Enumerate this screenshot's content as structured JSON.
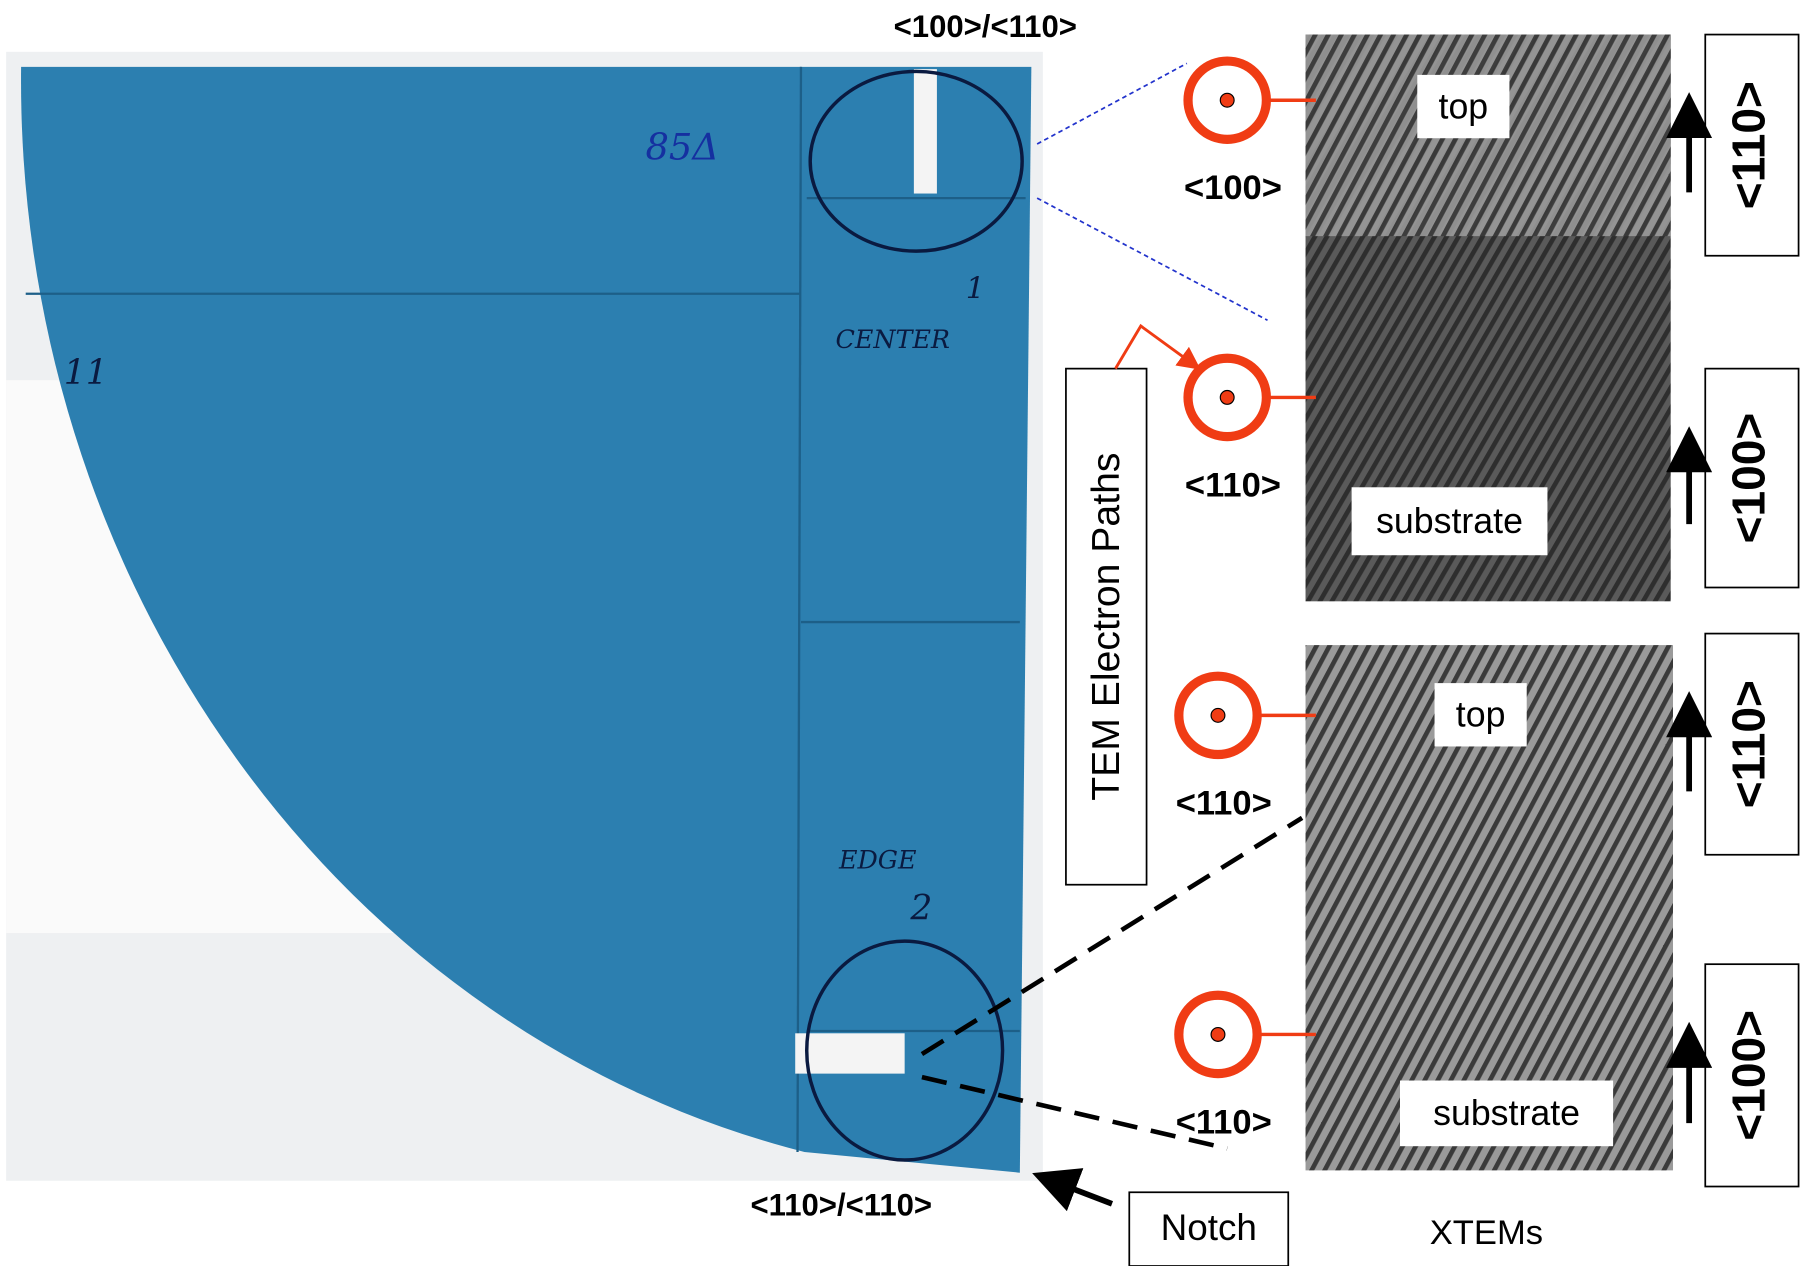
{
  "wafer": {
    "top_label": "<100>/<110>",
    "bottom_label": "<110>/<110>",
    "handwriting": {
      "id": "85Δ",
      "mark": "11",
      "center_num": "1",
      "center": "CENTER",
      "edge": "EDGE",
      "edge_num": "2"
    },
    "notch": "Notch"
  },
  "beam_label": "TEM Electron Paths",
  "panels": [
    {
      "top_beam": "<100>",
      "bottom_beam": "<110>",
      "top": "top",
      "substrate": "substrate",
      "top_dir": "<110>",
      "bottom_dir": "<100>"
    },
    {
      "top_beam": "<110>",
      "bottom_beam": "<110>",
      "top": "top",
      "substrate": "substrate",
      "top_dir": "<110>",
      "bottom_dir": "<100>"
    }
  ],
  "caption": "XTEMs"
}
